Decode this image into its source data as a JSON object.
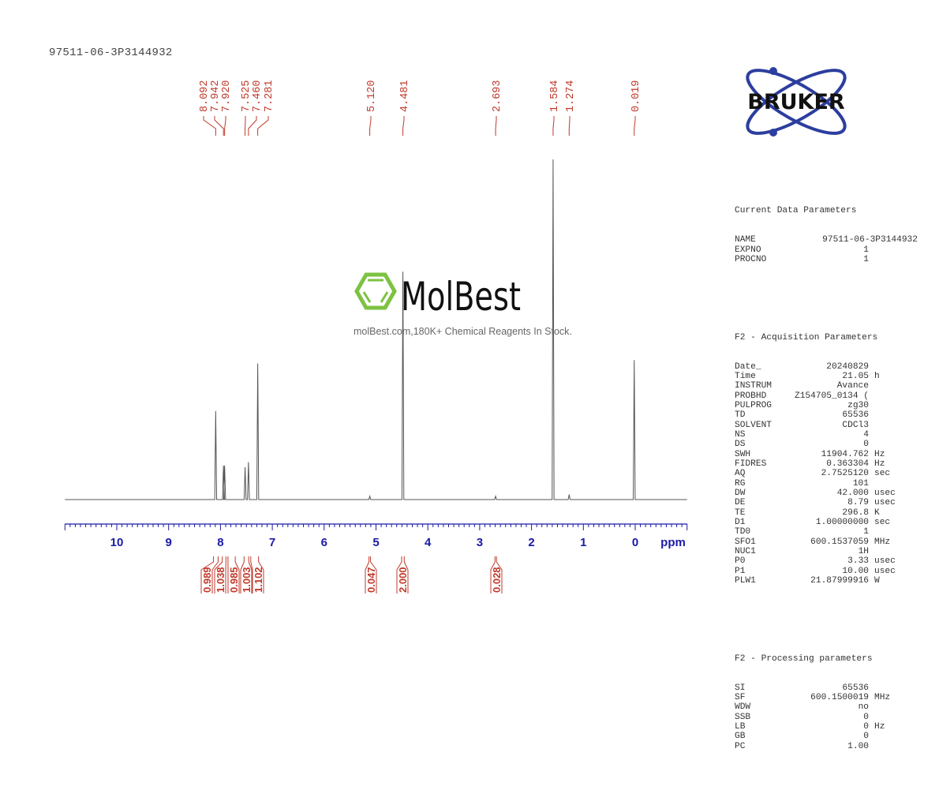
{
  "header": {
    "sample_name": "97511-06-3P3144932"
  },
  "watermark": {
    "brand": "MolBest",
    "tagline": "molBest.com,180K+ Chemical Reagents In Stock.",
    "brand_color": "#7dc242"
  },
  "logo": {
    "text": "BRUKER",
    "orbit_color": "#2c3e9e"
  },
  "colors": {
    "peak_label": "#c0392b",
    "axis": "#1a1aa6",
    "spectrum": "#555555"
  },
  "parameters": {
    "current": {
      "title": "Current Data Parameters",
      "rows": [
        {
          "key": "NAME",
          "value": "97511-06-3P3144932",
          "unit": ""
        },
        {
          "key": "EXPNO",
          "value": "1",
          "unit": ""
        },
        {
          "key": "PROCNO",
          "value": "1",
          "unit": ""
        }
      ]
    },
    "acquisition": {
      "title": "F2 - Acquisition Parameters",
      "rows": [
        {
          "key": "Date_",
          "value": "20240829",
          "unit": ""
        },
        {
          "key": "Time",
          "value": "21.05",
          "unit": "h"
        },
        {
          "key": "INSTRUM",
          "value": "Avance",
          "unit": ""
        },
        {
          "key": "PROBHD",
          "value": "Z154705_0134 (",
          "unit": ""
        },
        {
          "key": "PULPROG",
          "value": "zg30",
          "unit": ""
        },
        {
          "key": "TD",
          "value": "65536",
          "unit": ""
        },
        {
          "key": "SOLVENT",
          "value": "CDCl3",
          "unit": ""
        },
        {
          "key": "NS",
          "value": "4",
          "unit": ""
        },
        {
          "key": "DS",
          "value": "0",
          "unit": ""
        },
        {
          "key": "SWH",
          "value": "11904.762",
          "unit": "Hz"
        },
        {
          "key": "FIDRES",
          "value": "0.363304",
          "unit": "Hz"
        },
        {
          "key": "AQ",
          "value": "2.7525120",
          "unit": "sec"
        },
        {
          "key": "RG",
          "value": "101",
          "unit": ""
        },
        {
          "key": "DW",
          "value": "42.000",
          "unit": "usec"
        },
        {
          "key": "DE",
          "value": "8.79",
          "unit": "usec"
        },
        {
          "key": "TE",
          "value": "296.8",
          "unit": "K"
        },
        {
          "key": "D1",
          "value": "1.00000000",
          "unit": "sec"
        },
        {
          "key": "TD0",
          "value": "1",
          "unit": ""
        },
        {
          "key": "SFO1",
          "value": "600.1537059",
          "unit": "MHz"
        },
        {
          "key": "NUC1",
          "value": "1H",
          "unit": ""
        },
        {
          "key": "P0",
          "value": "3.33",
          "unit": "usec"
        },
        {
          "key": "P1",
          "value": "10.00",
          "unit": "usec"
        },
        {
          "key": "PLW1",
          "value": "21.87999916",
          "unit": "W"
        }
      ]
    },
    "processing": {
      "title": "F2 - Processing parameters",
      "rows": [
        {
          "key": "SI",
          "value": "65536",
          "unit": ""
        },
        {
          "key": "SF",
          "value": "600.1500019",
          "unit": "MHz"
        },
        {
          "key": "WDW",
          "value": "no",
          "unit": ""
        },
        {
          "key": "SSB",
          "value": "0",
          "unit": ""
        },
        {
          "key": "LB",
          "value": "0",
          "unit": "Hz"
        },
        {
          "key": "GB",
          "value": "0",
          "unit": ""
        },
        {
          "key": "PC",
          "value": "1.00",
          "unit": ""
        }
      ]
    }
  },
  "chart_data": {
    "type": "line",
    "title": "97511-06-3P3144932",
    "xlabel": "ppm",
    "ylabel": "",
    "xlim": [
      11.0,
      -1.0
    ],
    "x_reversed": true,
    "grid": false,
    "xticks": [
      10,
      9,
      8,
      7,
      6,
      5,
      4,
      3,
      2,
      1,
      0
    ],
    "xtick_unit_label": "ppm",
    "peak_labels": [
      "8.092",
      "7.942",
      "7.920",
      "7.525",
      "7.460",
      "7.281",
      "5.120",
      "4.481",
      "2.693",
      "1.584",
      "1.274",
      "0.019"
    ],
    "peaks": [
      {
        "ppm": 8.092,
        "rel_height": 0.26
      },
      {
        "ppm": 7.942,
        "rel_height": 0.1
      },
      {
        "ppm": 7.92,
        "rel_height": 0.1
      },
      {
        "ppm": 7.525,
        "rel_height": 0.095
      },
      {
        "ppm": 7.46,
        "rel_height": 0.11
      },
      {
        "ppm": 7.281,
        "rel_height": 0.4
      },
      {
        "ppm": 5.12,
        "rel_height": 0.01
      },
      {
        "ppm": 4.481,
        "rel_height": 0.67
      },
      {
        "ppm": 2.693,
        "rel_height": 0.01
      },
      {
        "ppm": 1.584,
        "rel_height": 1.0
      },
      {
        "ppm": 1.274,
        "rel_height": 0.015
      },
      {
        "ppm": 0.019,
        "rel_height": 0.41
      }
    ],
    "integrals": [
      {
        "ppm_from": 8.15,
        "ppm_to": 8.03,
        "value": "0.989"
      },
      {
        "ppm_from": 7.98,
        "ppm_to": 7.88,
        "value": "1.038"
      },
      {
        "ppm_from": 7.87,
        "ppm_to": 7.7,
        "value": "0.985"
      },
      {
        "ppm_from": 7.56,
        "ppm_to": 7.44,
        "value": "1.003"
      },
      {
        "ppm_from": 7.43,
        "ppm_to": 7.25,
        "value": "1.102"
      },
      {
        "ppm_from": 5.15,
        "ppm_to": 5.09,
        "value": "0.047"
      },
      {
        "ppm_from": 4.52,
        "ppm_to": 4.44,
        "value": "2.000"
      },
      {
        "ppm_from": 2.72,
        "ppm_to": 2.66,
        "value": "0.028"
      }
    ]
  }
}
